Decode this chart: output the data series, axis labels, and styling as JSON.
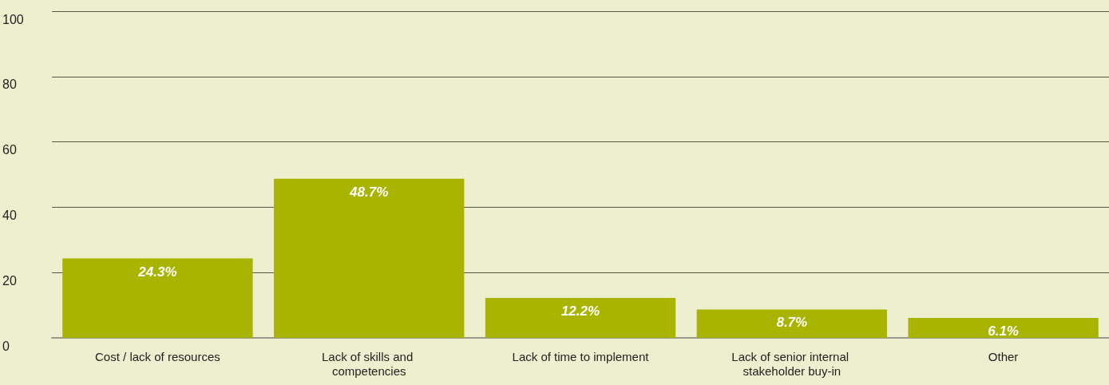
{
  "chart_data": {
    "type": "bar",
    "categories": [
      "Cost / lack of resources",
      "Lack of skills and competencies",
      "Lack of time to implement",
      "Lack of senior internal stakeholder buy-in",
      "Other"
    ],
    "values": [
      24.3,
      48.7,
      12.2,
      8.7,
      6.1
    ],
    "value_labels": [
      "24.3%",
      "48.7%",
      "12.2%",
      "8.7%",
      "6.1%"
    ],
    "color": "#a8b400",
    "ylim": [
      0,
      100
    ],
    "yticks": [
      0,
      20,
      40,
      60,
      80,
      100
    ],
    "grid": "y"
  }
}
